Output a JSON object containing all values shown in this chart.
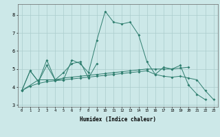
{
  "xlabel": "Humidex (Indice chaleur)",
  "x": [
    0,
    1,
    2,
    3,
    4,
    5,
    6,
    7,
    8,
    9,
    10,
    11,
    12,
    13,
    14,
    15,
    16,
    17,
    18,
    19,
    20,
    21,
    22,
    23
  ],
  "line1": [
    3.8,
    4.9,
    4.3,
    5.5,
    4.4,
    4.4,
    5.5,
    5.3,
    4.8,
    6.6,
    8.2,
    7.6,
    7.5,
    7.6,
    6.9,
    5.4,
    4.7,
    5.1,
    5.0,
    5.2,
    4.1,
    3.6,
    3.3,
    null
  ],
  "line2": [
    3.8,
    4.9,
    4.3,
    5.2,
    4.4,
    4.8,
    5.3,
    5.4,
    4.5,
    5.3,
    null,
    null,
    null,
    null,
    null,
    null,
    null,
    null,
    null,
    null,
    null,
    null,
    null,
    null
  ],
  "line3": [
    3.8,
    null,
    4.4,
    4.4,
    4.4,
    4.5,
    4.55,
    4.6,
    4.65,
    4.7,
    4.75,
    4.8,
    4.85,
    4.9,
    4.95,
    5.0,
    5.0,
    5.0,
    5.0,
    5.05,
    5.1,
    null,
    null,
    null
  ],
  "line4": [
    3.8,
    4.05,
    4.2,
    4.3,
    4.35,
    4.4,
    4.45,
    4.5,
    4.55,
    4.6,
    4.65,
    4.7,
    4.75,
    4.8,
    4.85,
    4.9,
    4.7,
    4.6,
    4.55,
    4.6,
    4.5,
    4.4,
    3.8,
    3.3
  ],
  "bg_color": "#cce8e8",
  "grid_color": "#aacccc",
  "line_color": "#2e7d6e",
  "ylim": [
    2.9,
    8.6
  ],
  "yticks": [
    3,
    4,
    5,
    6,
    7,
    8
  ],
  "xlim": [
    -0.5,
    23.5
  ],
  "figw": 3.2,
  "figh": 2.0,
  "dpi": 100
}
